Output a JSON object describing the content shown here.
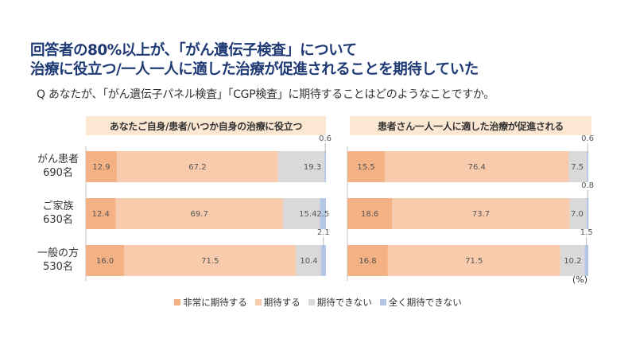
{
  "title": {
    "line1": "回答者の80%以上が、「がん遺伝子検査」について",
    "line2": "治療に役立つ/一人一人に適した治療が促進されることを期待していた"
  },
  "question": "Q あなたが、「がん遺伝子パネル検査」「CGP検査」に期待することはどのようなことですか。",
  "unit_label": "(%)",
  "rows": [
    {
      "name": "がん患者",
      "count": "690名"
    },
    {
      "name": "ご家族",
      "count": "630名"
    },
    {
      "name": "一般の方",
      "count": "530名"
    }
  ],
  "legend": [
    {
      "label": "非常に期待する",
      "color": "#f4b183"
    },
    {
      "label": "期待する",
      "color": "#f8cbad"
    },
    {
      "label": "期待できない",
      "color": "#d9d9d9"
    },
    {
      "label": "全く期待できない",
      "color": "#b4c7e7"
    }
  ],
  "chart_data": [
    {
      "type": "bar",
      "orientation": "horizontal",
      "stacked": true,
      "title": "あなたご自身/患者/いつか自身の治療に役立つ",
      "categories": [
        "がん患者 690名",
        "ご家族 630名",
        "一般の方 530名"
      ],
      "series": [
        {
          "name": "非常に期待する",
          "values": [
            12.9,
            12.4,
            16.0
          ]
        },
        {
          "name": "期待する",
          "values": [
            67.2,
            69.7,
            71.5
          ]
        },
        {
          "name": "期待できない",
          "values": [
            19.3,
            15.4,
            10.4
          ]
        },
        {
          "name": "全く期待できない",
          "values": [
            0.6,
            2.5,
            2.1
          ]
        }
      ],
      "xlim": [
        0,
        100
      ]
    },
    {
      "type": "bar",
      "orientation": "horizontal",
      "stacked": true,
      "title": "患者さん一人一人に適した治療が促進される",
      "categories": [
        "がん患者 690名",
        "ご家族 630名",
        "一般の方 530名"
      ],
      "series": [
        {
          "name": "非常に期待する",
          "values": [
            15.5,
            18.6,
            16.8
          ]
        },
        {
          "name": "期待する",
          "values": [
            76.4,
            73.7,
            71.5
          ]
        },
        {
          "name": "期待できない",
          "values": [
            7.5,
            7.0,
            10.2
          ]
        },
        {
          "name": "全く期待できない",
          "values": [
            0.6,
            0.8,
            1.5
          ]
        }
      ],
      "xlim": [
        0,
        100
      ]
    }
  ]
}
